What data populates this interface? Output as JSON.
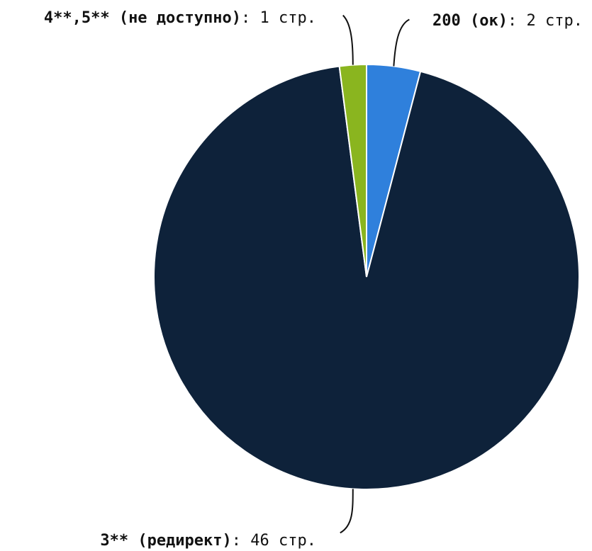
{
  "chart_data": {
    "type": "pie",
    "slices": [
      {
        "name": "200 (ок)",
        "sep": ": ",
        "value_text": "2 стр.",
        "value": 2,
        "color": "#2f80dc"
      },
      {
        "name": "3** (редирект)",
        "sep": ": ",
        "value_text": "46 стр.",
        "value": 46,
        "color": "#0e223a"
      },
      {
        "name": "4**,5** (не доступно)",
        "sep": ": ",
        "value_text": "1 стр.",
        "value": 1,
        "color": "#8ab51f"
      }
    ],
    "start_angle_deg": 0,
    "direction": "clockwise",
    "legend": "none"
  }
}
